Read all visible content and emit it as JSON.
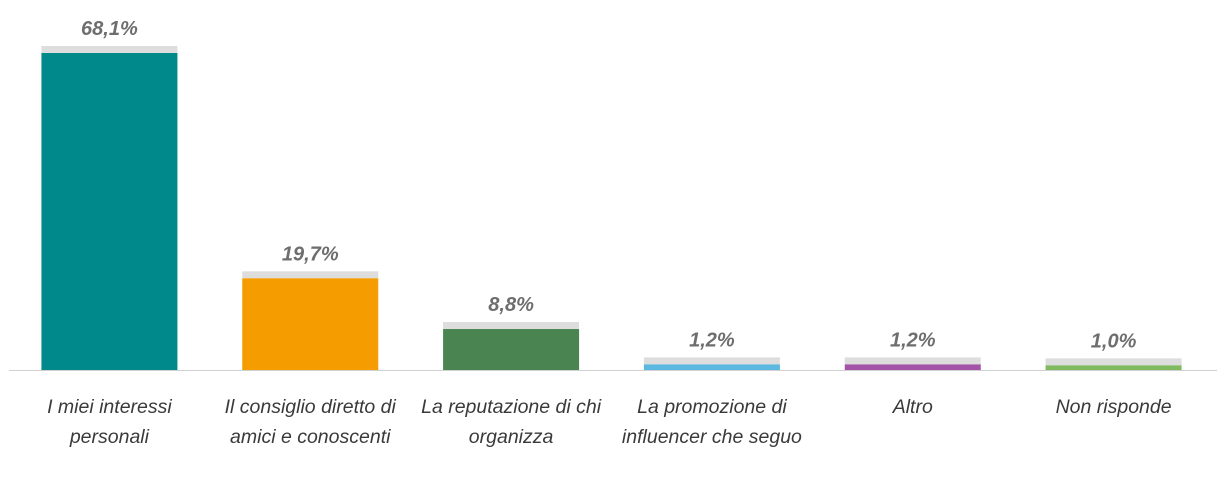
{
  "chart_data": {
    "type": "bar",
    "categories": [
      "I miei interessi personali",
      "Il consiglio diretto di amici e conoscenti",
      "La reputazione di chi organizza",
      "La promozione di influencer che seguo",
      "Altro",
      "Non risponde"
    ],
    "values": [
      68.1,
      19.7,
      8.8,
      1.2,
      1.2,
      1.0
    ],
    "value_labels": [
      "68,1%",
      "19,7%",
      "8,8%",
      "1,2%",
      "1,2%",
      "1,0%"
    ],
    "colors": [
      "#00898a",
      "#f59c00",
      "#4a8551",
      "#5bb8e0",
      "#a353a8",
      "#7fba5f"
    ]
  }
}
